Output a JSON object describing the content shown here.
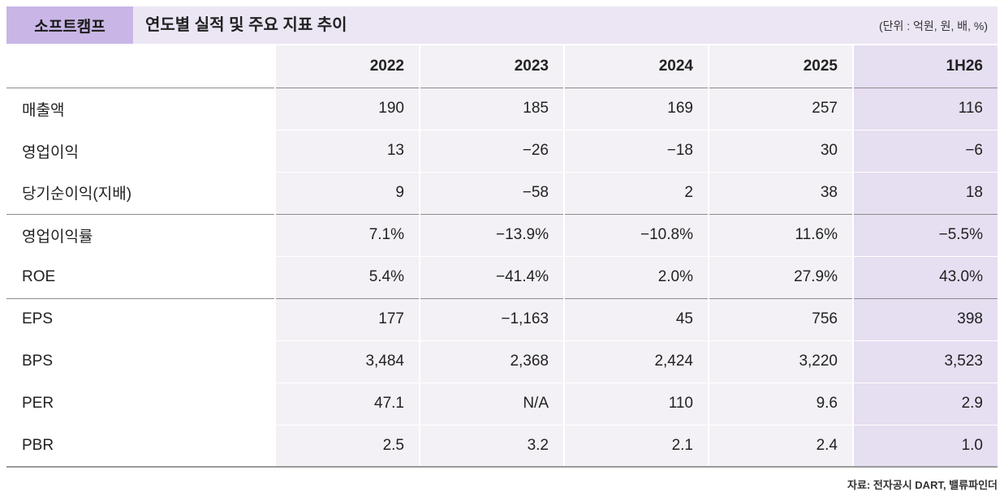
{
  "header": {
    "company": "소프트캠프",
    "title": "연도별 실적 및 주요 지표 추이",
    "unit": "(단위 : 억원, 원, 배, %)"
  },
  "table": {
    "columns": [
      "2022",
      "2023",
      "2024",
      "2025",
      "1H26"
    ],
    "rows": [
      {
        "label": "매출액",
        "values": [
          "190",
          "185",
          "169",
          "257",
          "116"
        ]
      },
      {
        "label": "영업이익",
        "values": [
          "13",
          "−26",
          "−18",
          "30",
          "−6"
        ]
      },
      {
        "label": "당기순이익(지배)",
        "values": [
          "9",
          "−58",
          "2",
          "38",
          "18"
        ]
      },
      {
        "label": "영업이익률",
        "values": [
          "7.1%",
          "−13.9%",
          "−10.8%",
          "11.6%",
          "−5.5%"
        ]
      },
      {
        "label": "ROE",
        "values": [
          "5.4%",
          "−41.4%",
          "2.0%",
          "27.9%",
          "43.0%"
        ]
      },
      {
        "label": "EPS",
        "values": [
          "177",
          "−1,163",
          "45",
          "756",
          "398"
        ]
      },
      {
        "label": "BPS",
        "values": [
          "3,484",
          "2,368",
          "2,424",
          "3,220",
          "3,523"
        ]
      },
      {
        "label": "PER",
        "values": [
          "47.1",
          "N/A",
          "110",
          "9.6",
          "2.9"
        ]
      },
      {
        "label": "PBR",
        "values": [
          "2.5",
          "3.2",
          "2.1",
          "2.4",
          "1.0"
        ]
      }
    ]
  },
  "source": "자료: 전자공시 DART, 밸류파인더",
  "colors": {
    "company_box": "#c9b6e6",
    "title_bar": "#ece6f4",
    "year_column": "#f3f1f6",
    "highlight_column": "#e6def1"
  }
}
